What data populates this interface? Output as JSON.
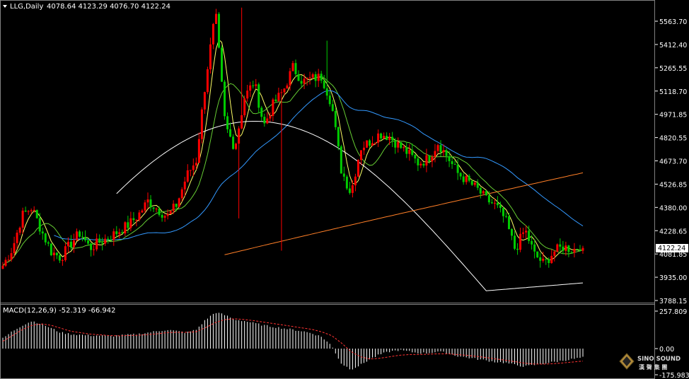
{
  "symbol_header": {
    "symbol": "LLG,Daily",
    "ohlc": "4078.64 4123.29 4076.70 4122.24"
  },
  "price_axis": {
    "ticks": [
      "5563.70",
      "5412.40",
      "5265.55",
      "5118.70",
      "4971.85",
      "4820.55",
      "4673.70",
      "4526.85",
      "4380.00",
      "4228.65",
      "4081.85",
      "3935.00",
      "3788.15"
    ],
    "current_price": "4122.24"
  },
  "macd_panel": {
    "label": "MACD(12,26,9) -52.319 -66.942",
    "ticks": [
      "257.809",
      "0.00",
      "-175.983"
    ]
  },
  "watermark": {
    "brand": "SINO SOUND",
    "sub": "漢 聲 集 團"
  },
  "colors": {
    "background": "#000000",
    "bull": "#ff0000",
    "bear": "#00cc00",
    "ma_fast": "#ffff66",
    "ma_mid": "#66cc33",
    "ma_blue": "#3399ff",
    "ma_white": "#ffffff",
    "ma_orange": "#ff7f27",
    "macd_hist": "#ffffff",
    "macd_signal": "#ff3333"
  },
  "chart_data": {
    "type": "candlestick",
    "ylim": [
      3788.15,
      5640
    ],
    "close_path": [
      4010,
      4120,
      4330,
      4380,
      4230,
      4100,
      4060,
      4150,
      4220,
      4120,
      4160,
      4190,
      4230,
      4270,
      4330,
      4420,
      4370,
      4320,
      4400,
      4580,
      4680,
      5200,
      5620,
      4900,
      4760,
      5080,
      5180,
      4900,
      5040,
      5120,
      5270,
      5180,
      5200,
      5210,
      5040,
      4620,
      4470,
      4760,
      4800,
      4850,
      4830,
      4770,
      4720,
      4660,
      4690,
      4790,
      4700,
      4600,
      4550,
      4500,
      4430,
      4390,
      4300,
      4110,
      4240,
      4080,
      4020,
      4100,
      4130,
      4110,
      4150
    ],
    "macd_hist": [
      70,
      120,
      160,
      190,
      170,
      140,
      110,
      100,
      95,
      90,
      90,
      85,
      90,
      95,
      100,
      110,
      120,
      130,
      120,
      110,
      130,
      200,
      250,
      230,
      200,
      190,
      175,
      160,
      150,
      140,
      130,
      120,
      105,
      80,
      20,
      -100,
      -140,
      -110,
      -70,
      -40,
      -20,
      -10,
      -20,
      -30,
      -30,
      -20,
      -30,
      -50,
      -60,
      -70,
      -80,
      -90,
      -95,
      -110,
      -120,
      -110,
      -100,
      -90,
      -80,
      -70,
      -60
    ],
    "macd_signal": [
      50,
      90,
      130,
      160,
      170,
      160,
      140,
      120,
      110,
      100,
      95,
      90,
      88,
      90,
      92,
      96,
      102,
      110,
      112,
      112,
      116,
      145,
      180,
      200,
      205,
      200,
      192,
      182,
      172,
      162,
      152,
      142,
      132,
      115,
      90,
      40,
      -20,
      -55,
      -70,
      -65,
      -55,
      -45,
      -40,
      -40,
      -38,
      -35,
      -35,
      -40,
      -45,
      -52,
      -60,
      -70,
      -78,
      -88,
      -98,
      -104,
      -104,
      -101,
      -96,
      -90,
      -84
    ]
  }
}
